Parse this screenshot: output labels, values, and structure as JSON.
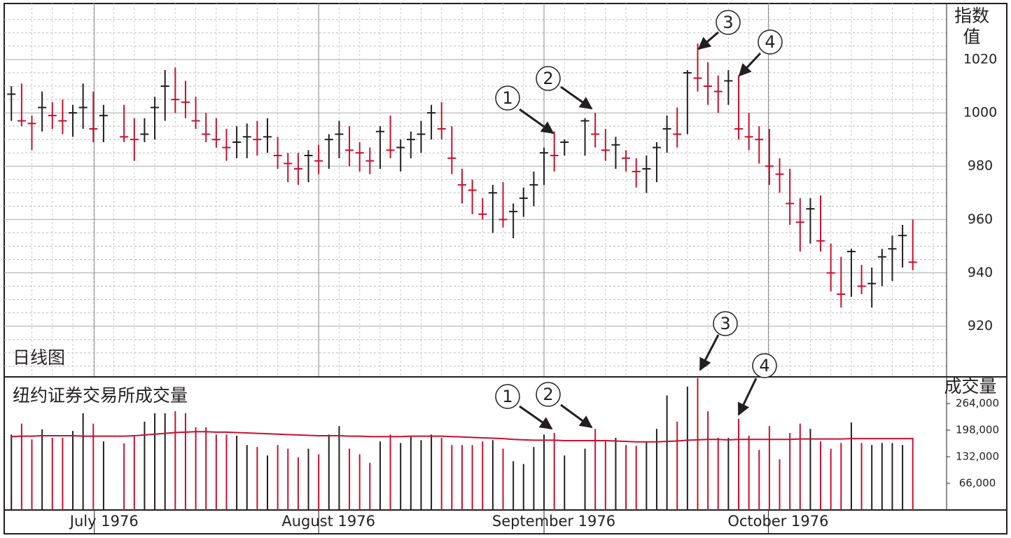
{
  "chart_data": [
    {
      "type": "ohlc",
      "title": "日线图",
      "y_label": [
        "指数",
        "值"
      ],
      "up_color": "#231f20",
      "down_color": "#c8102e",
      "x": [
        0,
        1,
        2,
        3,
        4,
        5,
        6,
        7,
        8,
        9,
        11,
        12,
        13,
        14,
        15,
        16,
        17,
        18,
        19,
        20,
        21,
        22,
        23,
        24,
        25,
        26,
        27,
        28,
        29,
        30,
        31,
        32,
        33,
        34,
        35,
        36,
        37,
        38,
        39,
        40,
        41,
        42,
        43,
        44,
        45,
        46,
        47,
        48,
        49,
        50,
        51,
        52,
        53,
        54,
        56,
        57,
        58,
        59,
        60,
        61,
        62,
        63,
        64,
        65,
        66,
        67,
        68,
        69,
        70,
        71,
        72,
        73,
        74,
        75,
        76,
        77,
        78,
        79,
        80,
        81,
        82,
        83,
        84,
        85,
        86,
        87,
        88
      ],
      "high": [
        1010,
        1011,
        999,
        1008,
        1004,
        1005,
        1003,
        1011,
        1008,
        1003,
        1003,
        998,
        998,
        1006,
        1016,
        1017,
        1012,
        1006,
        1000,
        998,
        994,
        995,
        996,
        997,
        998,
        991,
        985,
        985,
        986,
        988,
        992,
        997,
        995,
        989,
        987,
        995,
        999,
        990,
        993,
        997,
        1003,
        1004,
        995,
        979,
        975,
        968,
        973,
        974,
        966,
        972,
        978,
        987,
        993,
        990,
        998,
        1000,
        994,
        991,
        986,
        983,
        984,
        989,
        999,
        1002,
        1016,
        1026,
        1019,
        1014,
        1016,
        1014,
        1000,
        995,
        994,
        983,
        979,
        968,
        968,
        969,
        951,
        946,
        949,
        943,
        942,
        949,
        954,
        958,
        960
      ],
      "low": [
        997,
        995,
        986,
        993,
        994,
        992,
        991,
        994,
        989,
        989,
        989,
        982,
        989,
        990,
        997,
        1000,
        998,
        994,
        989,
        987,
        982,
        983,
        983,
        984,
        985,
        979,
        974,
        973,
        974,
        977,
        979,
        983,
        980,
        978,
        977,
        979,
        983,
        978,
        983,
        985,
        990,
        990,
        977,
        966,
        962,
        960,
        955,
        957,
        953,
        961,
        965,
        973,
        978,
        984,
        984,
        987,
        982,
        979,
        978,
        972,
        970,
        974,
        985,
        987,
        992,
        1008,
        1003,
        1000,
        1003,
        990,
        986,
        981,
        973,
        970,
        958,
        948,
        951,
        948,
        933,
        927,
        931,
        932,
        927,
        935,
        937,
        942,
        941
      ],
      "close": [
        1007,
        997,
        996,
        1002,
        999,
        997,
        1000,
        1002,
        994,
        999,
        991,
        990,
        992,
        1002,
        1010,
        1005,
        1004,
        997,
        992,
        990,
        987,
        989,
        991,
        990,
        991,
        984,
        981,
        979,
        984,
        982,
        990,
        992,
        986,
        985,
        982,
        993,
        986,
        987,
        990,
        992,
        1000,
        994,
        983,
        973,
        971,
        962,
        970,
        960,
        963,
        968,
        973,
        985,
        984,
        989,
        997,
        992,
        986,
        988,
        983,
        978,
        979,
        987,
        994,
        992,
        1015,
        1013,
        1010,
        1008,
        1012,
        994,
        991,
        990,
        980,
        977,
        966,
        959,
        964,
        952,
        940,
        932,
        948,
        935,
        936,
        946,
        949,
        954,
        944
      ],
      "xlim": [
        -0.7,
        91.3
      ],
      "ylim": [
        901,
        1041
      ],
      "yticks": [
        920,
        940,
        960,
        980,
        1000,
        1020
      ],
      "grid": true,
      "annotations": [
        "1",
        "2",
        "3",
        "4"
      ]
    },
    {
      "type": "bar",
      "title": "纽约证券交易所成交量",
      "y_label": "成交量",
      "values": [
        187000,
        214000,
        175000,
        200000,
        179000,
        179000,
        196000,
        240000,
        214000,
        170000,
        165000,
        184000,
        219000,
        240000,
        240000,
        245000,
        240000,
        205000,
        205000,
        187000,
        187000,
        184000,
        161000,
        156000,
        135000,
        161000,
        152000,
        131000,
        152000,
        138000,
        187000,
        208000,
        152000,
        138000,
        117000,
        170000,
        187000,
        166000,
        184000,
        173000,
        187000,
        179000,
        161000,
        161000,
        161000,
        170000,
        173000,
        152000,
        121000,
        114000,
        156000,
        187000,
        191000,
        135000,
        152000,
        201000,
        170000,
        179000,
        161000,
        159000,
        170000,
        201000,
        284000,
        219000,
        306000,
        327000,
        245000,
        179000,
        179000,
        226000,
        184000,
        149000,
        208000,
        126000,
        191000,
        214000,
        201000,
        170000,
        152000,
        166000,
        217000,
        166000,
        161000,
        166000,
        166000,
        161000,
        179000
      ],
      "average": {
        "color": "#c8102e",
        "values": [
          182000,
          183000,
          183000,
          184000,
          184000,
          184000,
          184000,
          183000,
          183000,
          183000,
          183000,
          184000,
          186000,
          188000,
          190000,
          192000,
          193000,
          194000,
          194000,
          193000,
          193000,
          192000,
          191000,
          190000,
          189000,
          188000,
          187000,
          186000,
          185000,
          184000,
          184000,
          184000,
          183000,
          183000,
          182000,
          182000,
          182000,
          182000,
          183000,
          183000,
          183000,
          183000,
          182000,
          181000,
          180000,
          179000,
          178000,
          177000,
          175000,
          174000,
          173000,
          173000,
          173000,
          172000,
          172000,
          172000,
          172000,
          171000,
          170000,
          169000,
          169000,
          169000,
          170000,
          171000,
          173000,
          174000,
          175000,
          175000,
          174000,
          175000,
          175000,
          175000,
          175000,
          175000,
          175000,
          176000,
          176000,
          176000,
          176000,
          176000,
          177000,
          177000,
          177000,
          177000,
          177000,
          177000,
          177000
        ]
      },
      "ylim": [
        0,
        330000
      ],
      "yticks": [
        {
          "value": 66000,
          "label": "66,000"
        },
        {
          "value": 132000,
          "label": "132,000"
        },
        {
          "value": 198000,
          "label": "198,000"
        },
        {
          "value": 264000,
          "label": "264,000"
        }
      ],
      "xticks": [
        {
          "value": 8.1,
          "label": "July 1976"
        },
        {
          "value": 30,
          "label": "August 1976"
        },
        {
          "value": 52,
          "label": "September 1976"
        },
        {
          "value": 73.9,
          "label": "October 1976"
        }
      ],
      "annotations": [
        "1",
        "2",
        "3",
        "4"
      ]
    }
  ]
}
